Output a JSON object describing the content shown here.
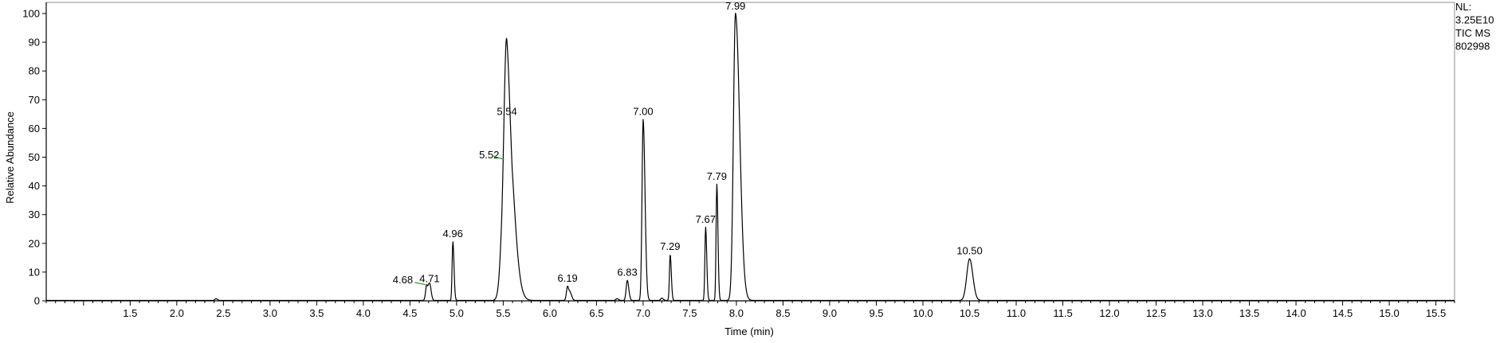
{
  "chart_data": {
    "type": "line",
    "xlabel": "Time (min)",
    "ylabel": "Relative Abundance",
    "xlim": [
      0.6,
      15.7
    ],
    "ylim": [
      0,
      100
    ],
    "x_ticks": [
      "1.5",
      "2.0",
      "2.5",
      "3.0",
      "3.5",
      "4.0",
      "4.5",
      "5.0",
      "5.5",
      "6.0",
      "6.5",
      "7.0",
      "7.5",
      "8.0",
      "8.5",
      "9.0",
      "9.5",
      "10.0",
      "10.5",
      "11.0",
      "11.5",
      "12.0",
      "12.5",
      "13.0",
      "13.5",
      "14.0",
      "14.5",
      "15.0",
      "15.5"
    ],
    "y_ticks": [
      "0",
      "10",
      "20",
      "30",
      "40",
      "50",
      "60",
      "70",
      "80",
      "90",
      "100"
    ],
    "side_info": [
      "NL:",
      "3.25E10",
      "TIC  MS",
      "802998"
    ],
    "peaks": [
      {
        "rt": 2.42,
        "height": 0.6,
        "label": ""
      },
      {
        "rt": 4.68,
        "height": 5.5,
        "label": "4.68"
      },
      {
        "rt": 4.71,
        "height": 6.0,
        "label": "4.71"
      },
      {
        "rt": 4.96,
        "height": 20.5,
        "label": "4.96"
      },
      {
        "rt": 5.52,
        "height": 49.0,
        "label": "5.52"
      },
      {
        "rt": 5.54,
        "height": 63.0,
        "label": "5.54"
      },
      {
        "rt": 6.19,
        "height": 5.0,
        "label": "6.19"
      },
      {
        "rt": 6.22,
        "height": 2.5,
        "label": ""
      },
      {
        "rt": 6.72,
        "height": 0.6,
        "label": ""
      },
      {
        "rt": 6.83,
        "height": 7.0,
        "label": "6.83"
      },
      {
        "rt": 7.0,
        "height": 63.0,
        "label": "7.00"
      },
      {
        "rt": 7.2,
        "height": 0.8,
        "label": ""
      },
      {
        "rt": 7.29,
        "height": 16.0,
        "label": "7.29"
      },
      {
        "rt": 7.67,
        "height": 25.5,
        "label": "7.67"
      },
      {
        "rt": 7.79,
        "height": 40.5,
        "label": "7.79"
      },
      {
        "rt": 7.99,
        "height": 100,
        "label": "7.99"
      },
      {
        "rt": 10.5,
        "height": 14.5,
        "label": "10.50"
      }
    ]
  }
}
